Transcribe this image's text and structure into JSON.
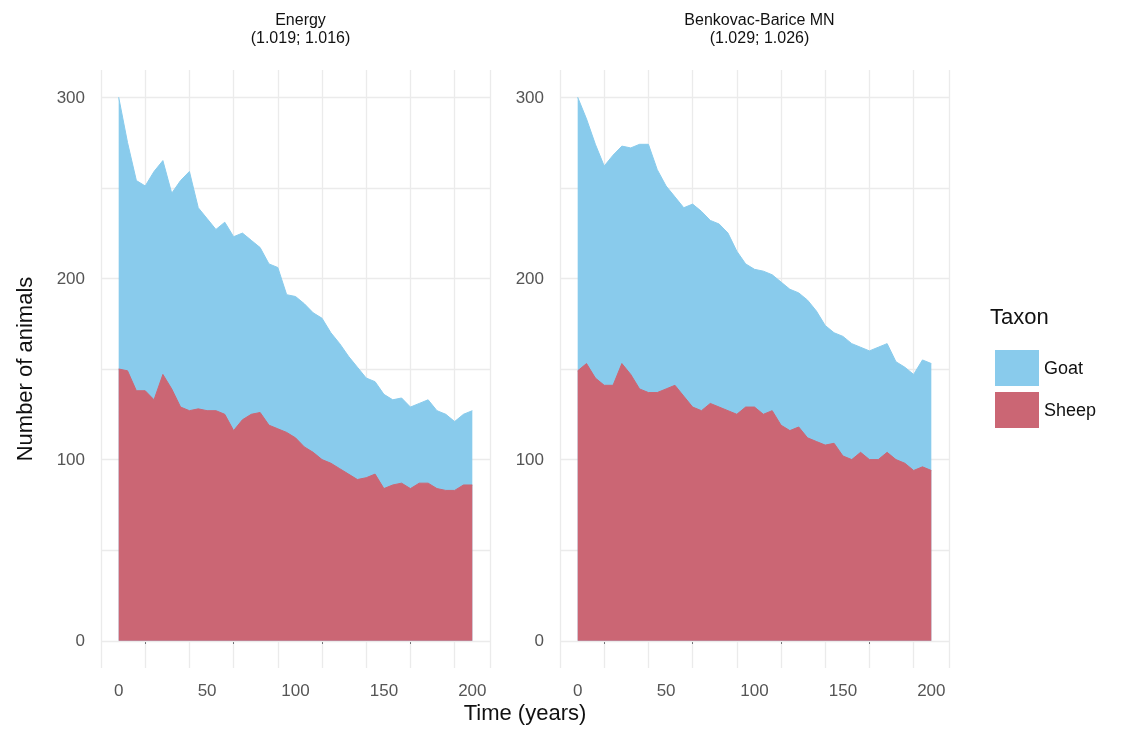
{
  "chart_data": [
    {
      "type": "area",
      "title": "Energy",
      "subtitle": "(1.019; 1.016)",
      "xlabel": "Time (years)",
      "ylabel": "Number of animals",
      "stacked": true,
      "grid": true,
      "legend": false,
      "x": [
        0,
        5,
        10,
        15,
        20,
        25,
        30,
        35,
        40,
        45,
        50,
        55,
        60,
        65,
        70,
        75,
        80,
        85,
        90,
        95,
        100,
        105,
        110,
        115,
        120,
        125,
        130,
        135,
        140,
        145,
        150,
        155,
        160,
        165,
        170,
        175,
        180,
        185,
        190,
        195,
        200
      ],
      "xlim": [
        -10,
        210
      ],
      "xticks": [
        0,
        50,
        100,
        150,
        200
      ],
      "ylim": [
        -15,
        315
      ],
      "yticks": [
        0,
        100,
        200,
        300
      ],
      "series": [
        {
          "color": "#cb6674",
          "values": [
            150,
            149,
            138,
            138,
            133,
            147,
            139,
            129,
            127,
            128,
            127,
            127,
            125,
            116,
            122,
            125,
            126,
            119,
            117,
            115,
            112,
            107,
            104,
            100,
            98,
            95,
            92,
            89,
            90,
            92,
            84,
            86,
            87,
            84,
            87,
            87,
            84,
            83,
            83,
            86,
            86
          ]
        },
        {
          "color": "#89cbec",
          "values": [
            150,
            126,
            116,
            113,
            126,
            118,
            108,
            125,
            132,
            111,
            106,
            100,
            106,
            107,
            103,
            96,
            91,
            89,
            89,
            76,
            78,
            79,
            77,
            78,
            72,
            69,
            65,
            62,
            55,
            51,
            52,
            47,
            47,
            45,
            44,
            46,
            43,
            42,
            38,
            39,
            41
          ]
        }
      ]
    },
    {
      "type": "area",
      "title": "Benkovac-Barice MN",
      "subtitle": "(1.029; 1.026)",
      "legend_title": "Taxon",
      "stacked": true,
      "grid": true,
      "legend": "right",
      "x": [
        0,
        5,
        10,
        15,
        20,
        25,
        30,
        35,
        40,
        45,
        50,
        55,
        60,
        65,
        70,
        75,
        80,
        85,
        90,
        95,
        100,
        105,
        110,
        115,
        120,
        125,
        130,
        135,
        140,
        145,
        150,
        155,
        160,
        165,
        170,
        175,
        180,
        185,
        190,
        195,
        200
      ],
      "xlim": [
        -10,
        210
      ],
      "xticks": [
        0,
        50,
        100,
        150,
        200
      ],
      "ylim": [
        -15,
        315
      ],
      "yticks": [
        0,
        100,
        200,
        300
      ],
      "series": [
        {
          "name": "Sheep",
          "color": "#cb6674",
          "values": [
            149,
            153,
            145,
            141,
            141,
            153,
            147,
            139,
            137,
            137,
            139,
            141,
            135,
            129,
            127,
            131,
            129,
            127,
            125,
            129,
            129,
            125,
            127,
            119,
            116,
            118,
            112,
            110,
            108,
            109,
            102,
            100,
            104,
            100,
            100,
            104,
            100,
            98,
            94,
            96,
            94
          ]
        },
        {
          "name": "Goat",
          "color": "#89cbec",
          "values": [
            151,
            135,
            129,
            121,
            127,
            120,
            125,
            135,
            137,
            123,
            112,
            104,
            104,
            112,
            110,
            101,
            101,
            98,
            90,
            79,
            76,
            79,
            75,
            79,
            78,
            74,
            76,
            72,
            66,
            61,
            66,
            64,
            58,
            60,
            62,
            60,
            54,
            53,
            53,
            59,
            59
          ]
        }
      ]
    }
  ]
}
